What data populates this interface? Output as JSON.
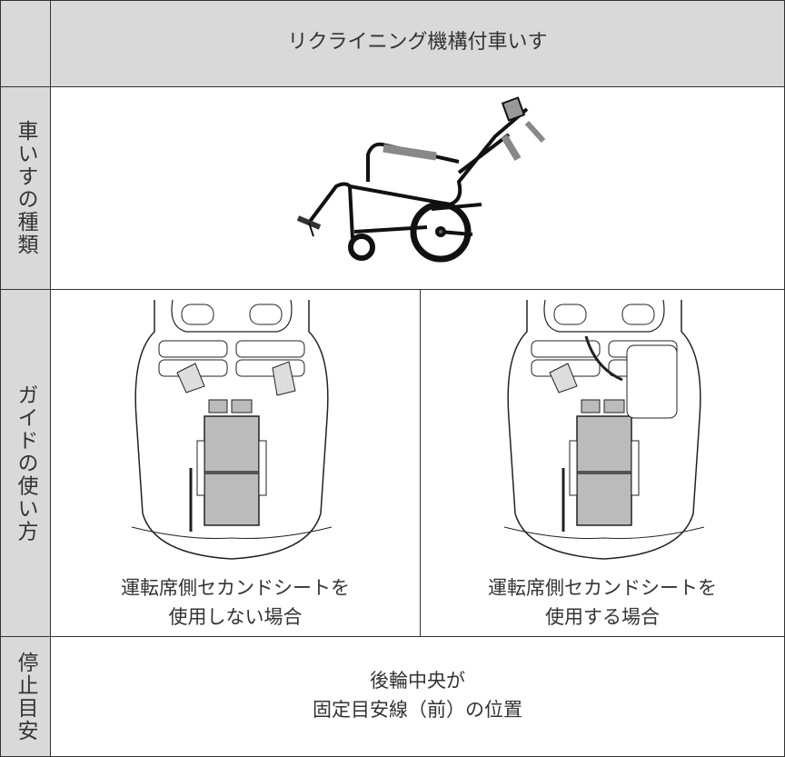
{
  "table": {
    "header": "リクライニング機構付車いす",
    "rows": [
      {
        "label": "車いすの種類"
      },
      {
        "label": "ガイドの使い方",
        "cells": [
          [
            "運転席側セカンドシートを",
            "使用しない場合"
          ],
          [
            "運転席側セカンドシートを",
            "使用する場合"
          ]
        ]
      },
      {
        "label": "停止目安",
        "text": [
          "後輪中央が",
          "固定目安線（前）の位置"
        ]
      }
    ]
  }
}
